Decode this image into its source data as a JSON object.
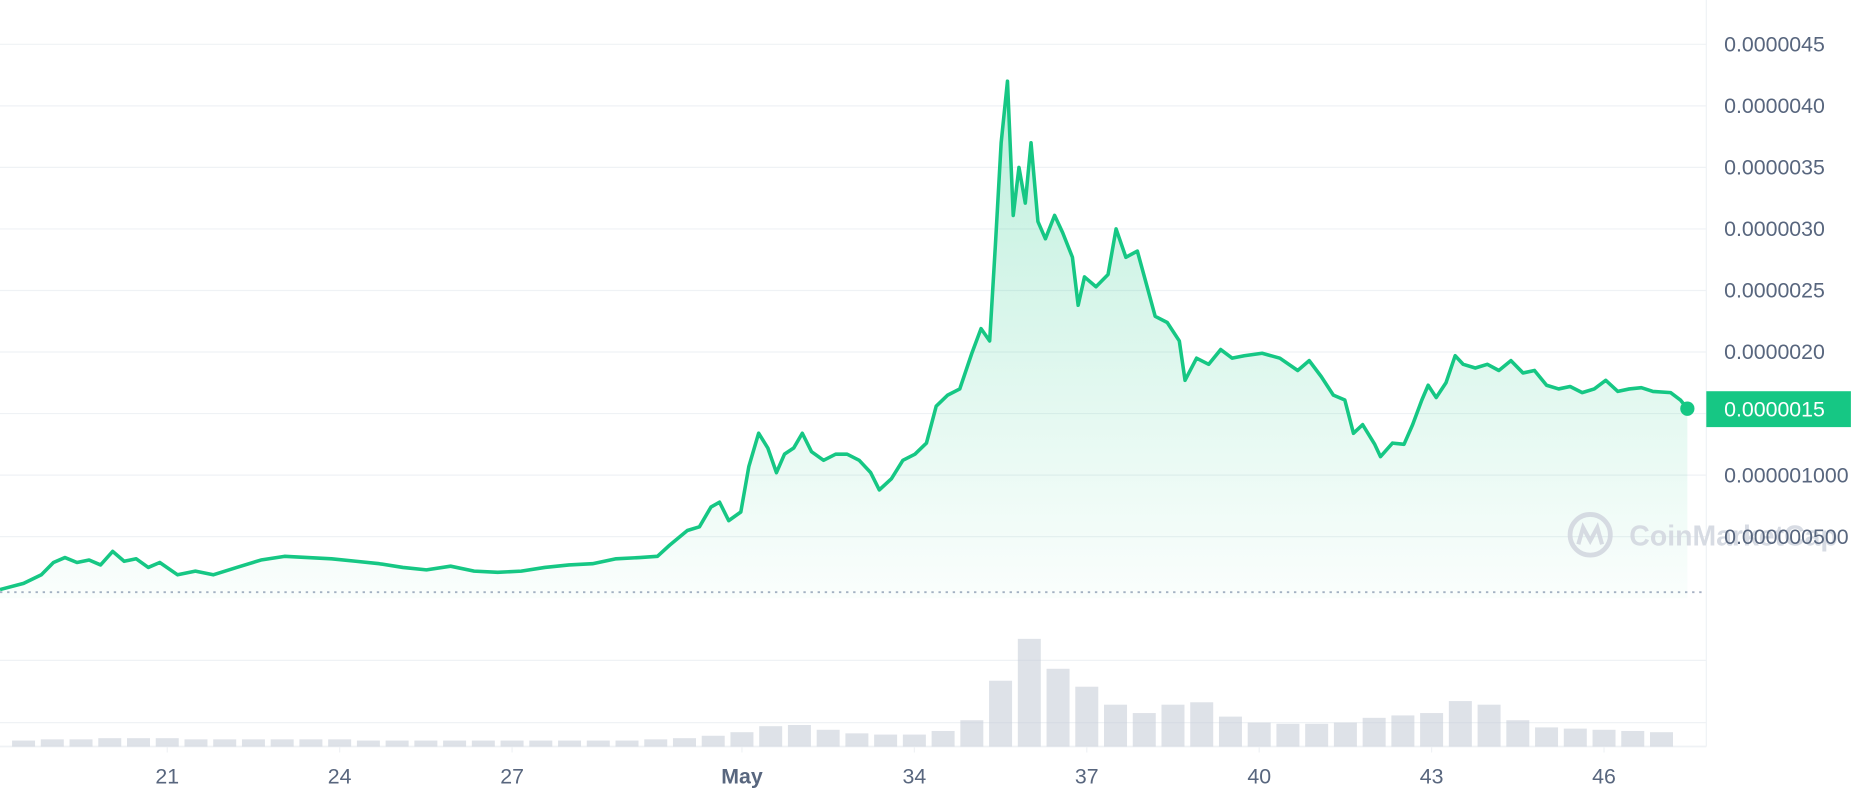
{
  "chart_data": {
    "type": "line",
    "xlim": [
      18.09,
      47.78
    ],
    "ylim": [
      0,
      4.86e-06
    ],
    "xticks": [
      21,
      24,
      27,
      {
        "value": 31,
        "label": "May"
      },
      34,
      37,
      40,
      43,
      46
    ],
    "yticks": [
      {
        "value": 4.5e-06,
        "label": "0.0000045"
      },
      {
        "value": 4e-06,
        "label": "0.0000040"
      },
      {
        "value": 3.5e-06,
        "label": "0.0000035"
      },
      {
        "value": 3e-06,
        "label": "0.0000030"
      },
      {
        "value": 2.5e-06,
        "label": "0.0000025"
      },
      {
        "value": 2e-06,
        "label": "0.0000020"
      },
      {
        "value": 1.5e-06,
        "label": "0.0000015"
      },
      {
        "value": 1e-06,
        "label": "0.000001000"
      },
      {
        "value": 5e-07,
        "label": "0.000000500"
      }
    ],
    "grid": true,
    "price_tag": "0.0000015",
    "watermark": "CoinMarketCap",
    "series": [
      {
        "color": "#16c784",
        "x": [
          18.09,
          18.5,
          18.81,
          19.02,
          19.22,
          19.43,
          19.64,
          19.84,
          20.05,
          20.25,
          20.46,
          20.67,
          20.87,
          21.18,
          21.49,
          21.8,
          22.21,
          22.63,
          23.04,
          23.45,
          23.86,
          24.28,
          24.69,
          25.1,
          25.51,
          25.93,
          26.34,
          26.75,
          27.16,
          27.57,
          27.99,
          28.4,
          28.81,
          29.22,
          29.53,
          29.74,
          30.05,
          30.26,
          30.46,
          30.61,
          30.77,
          30.98,
          31.12,
          31.29,
          31.45,
          31.6,
          31.74,
          31.9,
          32.05,
          32.21,
          32.42,
          32.63,
          32.83,
          33.04,
          33.24,
          33.39,
          33.6,
          33.8,
          34.01,
          34.21,
          34.38,
          34.58,
          34.79,
          35.0,
          35.16,
          35.31,
          35.41,
          35.51,
          35.62,
          35.72,
          35.82,
          35.93,
          36.03,
          36.15,
          36.28,
          36.44,
          36.58,
          36.75,
          36.85,
          36.96,
          37.16,
          37.37,
          37.51,
          37.68,
          37.88,
          38.05,
          38.19,
          38.4,
          38.61,
          38.71,
          38.91,
          39.12,
          39.33,
          39.53,
          39.74,
          40.05,
          40.36,
          40.67,
          40.87,
          41.08,
          41.29,
          41.49,
          41.64,
          41.8,
          42.01,
          42.11,
          42.32,
          42.52,
          42.67,
          42.83,
          42.94,
          43.08,
          43.25,
          43.41,
          43.55,
          43.76,
          43.97,
          44.17,
          44.38,
          44.59,
          44.79,
          45.0,
          45.21,
          45.41,
          45.62,
          45.83,
          46.03,
          46.24,
          46.44,
          46.65,
          46.85,
          47.16,
          47.33,
          47.45
        ],
        "values": [
          7e-08,
          1.2e-07,
          1.9e-07,
          2.9e-07,
          3.3e-07,
          2.9e-07,
          3.1e-07,
          2.7e-07,
          3.8e-07,
          3e-07,
          3.2e-07,
          2.5e-07,
          2.9e-07,
          1.9e-07,
          2.2e-07,
          1.9e-07,
          2.5e-07,
          3.1e-07,
          3.4e-07,
          3.3e-07,
          3.2e-07,
          3e-07,
          2.8e-07,
          2.5e-07,
          2.3e-07,
          2.6e-07,
          2.2e-07,
          2.1e-07,
          2.2e-07,
          2.5e-07,
          2.7e-07,
          2.8e-07,
          3.2e-07,
          3.3e-07,
          3.4e-07,
          4.3e-07,
          5.5e-07,
          5.8e-07,
          7.4e-07,
          7.8e-07,
          6.3e-07,
          7e-07,
          1.07e-06,
          1.34e-06,
          1.22e-06,
          1.02e-06,
          1.17e-06,
          1.22e-06,
          1.34e-06,
          1.19e-06,
          1.12e-06,
          1.17e-06,
          1.17e-06,
          1.12e-06,
          1.02e-06,
          8.8e-07,
          9.7e-07,
          1.12e-06,
          1.17e-06,
          1.26e-06,
          1.56e-06,
          1.65e-06,
          1.7e-06,
          1.99e-06,
          2.19e-06,
          2.09e-06,
          2.87e-06,
          3.7e-06,
          4.2e-06,
          3.11e-06,
          3.5e-06,
          3.21e-06,
          3.7e-06,
          3.06e-06,
          2.92e-06,
          3.11e-06,
          2.97e-06,
          2.77e-06,
          2.38e-06,
          2.61e-06,
          2.53e-06,
          2.63e-06,
          3e-06,
          2.77e-06,
          2.82e-06,
          2.53e-06,
          2.29e-06,
          2.24e-06,
          2.09e-06,
          1.77e-06,
          1.95e-06,
          1.9e-06,
          2.02e-06,
          1.95e-06,
          1.97e-06,
          1.99e-06,
          1.95e-06,
          1.85e-06,
          1.93e-06,
          1.8e-06,
          1.65e-06,
          1.61e-06,
          1.34e-06,
          1.41e-06,
          1.25e-06,
          1.15e-06,
          1.26e-06,
          1.25e-06,
          1.41e-06,
          1.61e-06,
          1.73e-06,
          1.63e-06,
          1.75e-06,
          1.97e-06,
          1.9e-06,
          1.87e-06,
          1.9e-06,
          1.85e-06,
          1.93e-06,
          1.83e-06,
          1.85e-06,
          1.73e-06,
          1.7e-06,
          1.72e-06,
          1.67e-06,
          1.7e-06,
          1.77e-06,
          1.68e-06,
          1.7e-06,
          1.71e-06,
          1.68e-06,
          1.67e-06,
          1.61e-06,
          1.54e-06
        ]
      }
    ],
    "volume": {
      "color": "#c3cad5",
      "ylim": [
        0,
        100
      ],
      "x": [
        18.5,
        19,
        19.5,
        20,
        20.5,
        21,
        21.5,
        22,
        22.5,
        23,
        23.5,
        24,
        24.5,
        25,
        25.5,
        26,
        26.5,
        27,
        27.5,
        28,
        28.5,
        29,
        29.5,
        30,
        30.5,
        31,
        31.5,
        32,
        32.5,
        33,
        33.5,
        34,
        34.5,
        35,
        35.5,
        36,
        36.5,
        37,
        37.5,
        38,
        38.5,
        39,
        39.5,
        40,
        40.5,
        41,
        41.5,
        42,
        42.5,
        43,
        43.5,
        44,
        44.5,
        45,
        45.5,
        46,
        46.5,
        47
      ],
      "values": [
        5,
        6,
        6,
        7,
        7,
        7,
        6,
        6,
        6,
        6,
        6,
        6,
        5,
        5,
        5,
        5,
        5,
        5,
        5,
        5,
        5,
        5,
        6,
        7,
        9,
        12,
        17,
        18,
        14,
        11,
        10,
        10,
        13,
        22,
        55,
        90,
        65,
        50,
        35,
        28,
        35,
        37,
        25,
        20,
        19,
        19,
        20,
        24,
        26,
        28,
        38,
        35,
        22,
        16,
        15,
        14,
        13,
        12
      ]
    }
  }
}
